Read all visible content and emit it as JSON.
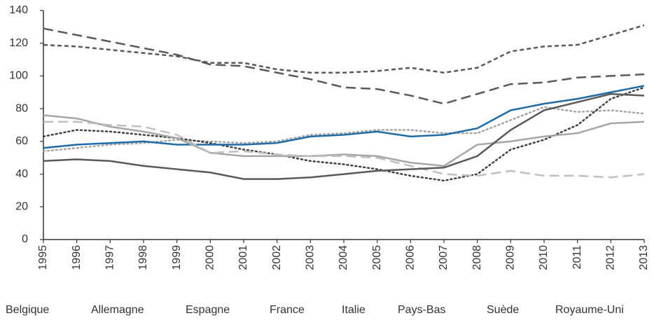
{
  "chart_data": {
    "type": "line",
    "categories": [
      "1995",
      "1996",
      "1997",
      "1998",
      "1999",
      "2000",
      "2001",
      "2002",
      "2003",
      "2004",
      "2005",
      "2006",
      "2007",
      "2008",
      "2009",
      "2010",
      "2011",
      "2012",
      "2013"
    ],
    "ylim": [
      0,
      140
    ],
    "yticks": [
      0,
      20,
      40,
      60,
      80,
      100,
      120,
      140
    ],
    "grid": false,
    "legend": "bottom",
    "series": [
      {
        "name": "Belgique",
        "color": "#595959",
        "dash": "long",
        "values": [
          129,
          125,
          121,
          117,
          113,
          107,
          106,
          102,
          98,
          93,
          92,
          88,
          83,
          89,
          95,
          96,
          99,
          100,
          101
        ]
      },
      {
        "name": "Allemagne",
        "color": "#a6a6a6",
        "dash": "dot",
        "values": [
          54,
          56,
          58,
          59,
          61,
          60,
          59,
          60,
          64,
          65,
          67,
          67,
          65,
          65,
          73,
          81,
          78,
          79,
          77
        ]
      },
      {
        "name": "Espagne",
        "color": "#404040",
        "dash": "dot",
        "values": [
          63,
          67,
          66,
          64,
          62,
          59,
          55,
          52,
          48,
          46,
          43,
          39,
          36,
          40,
          55,
          61,
          70,
          86,
          93
        ]
      },
      {
        "name": "France",
        "color": "#1f6ba5",
        "dash": "solid",
        "values": [
          56,
          58,
          59,
          60,
          58,
          58,
          58,
          59,
          63,
          64,
          66,
          63,
          64,
          68,
          79,
          83,
          86,
          90,
          94
        ]
      },
      {
        "name": "Italie",
        "color": "#595959",
        "dash": "short",
        "values": [
          119,
          118,
          116,
          114,
          112,
          108,
          108,
          104,
          102,
          102,
          103,
          105,
          102,
          105,
          115,
          118,
          119,
          125,
          131
        ]
      },
      {
        "name": "Pays-Bas",
        "color": "#a6a6a6",
        "dash": "solid",
        "values": [
          76,
          74,
          69,
          66,
          62,
          53,
          51,
          51,
          51,
          52,
          51,
          47,
          45,
          58,
          60,
          63,
          65,
          71,
          72
        ]
      },
      {
        "name": "Suède",
        "color": "#bfbfbf",
        "dash": "long",
        "values": [
          72,
          72,
          70,
          69,
          64,
          53,
          54,
          52,
          51,
          51,
          50,
          45,
          40,
          39,
          42,
          39,
          39,
          38,
          40
        ]
      },
      {
        "name": "Royaume-Uni",
        "color": "#595959",
        "dash": "solid",
        "values": [
          48,
          49,
          48,
          45,
          43,
          41,
          37,
          37,
          38,
          40,
          42,
          43,
          44,
          51,
          67,
          79,
          84,
          89,
          88
        ]
      }
    ]
  }
}
